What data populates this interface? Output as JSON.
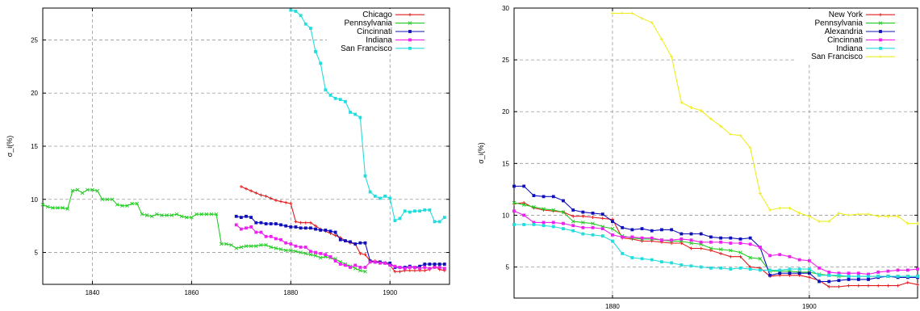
{
  "chart_data": [
    {
      "type": "line",
      "ylabel": "σ_i(%)",
      "xlim": [
        1830,
        1912
      ],
      "ylim": [
        2,
        28
      ],
      "xticks": [
        1840,
        1860,
        1880,
        1900
      ],
      "yticks": [
        5,
        10,
        15,
        20,
        25
      ],
      "grid": true,
      "legend_position": "top-right",
      "series": [
        {
          "name": "Chicago",
          "color": "#e41a1c",
          "marker": "plus",
          "x": [
            1870,
            1871,
            1872,
            1873,
            1874,
            1875,
            1876,
            1877,
            1878,
            1879,
            1880,
            1881,
            1882,
            1883,
            1884,
            1885,
            1886,
            1887,
            1888,
            1889,
            1890,
            1891,
            1892,
            1893,
            1894,
            1895,
            1896,
            1897,
            1898,
            1899,
            1900,
            1901,
            1902,
            1903,
            1904,
            1905,
            1906,
            1907,
            1908,
            1909,
            1910,
            1911
          ],
          "y": [
            11.2,
            11.0,
            10.8,
            10.6,
            10.4,
            10.3,
            10.1,
            9.9,
            9.8,
            9.7,
            9.6,
            7.9,
            7.8,
            7.8,
            7.8,
            7.5,
            7.2,
            7.0,
            6.8,
            6.6,
            6.4,
            6.1,
            5.9,
            5.8,
            4.9,
            4.8,
            4.2,
            4.2,
            4.1,
            4.0,
            3.8,
            3.2,
            3.2,
            3.3,
            3.3,
            3.3,
            3.3,
            3.3,
            3.4,
            3.7,
            3.4,
            3.3
          ]
        },
        {
          "name": "Pennsylvania",
          "color": "#22cc22",
          "marker": "cross",
          "x": [
            1830,
            1831,
            1832,
            1833,
            1834,
            1835,
            1836,
            1837,
            1838,
            1839,
            1840,
            1841,
            1842,
            1843,
            1844,
            1845,
            1846,
            1847,
            1848,
            1849,
            1850,
            1851,
            1852,
            1853,
            1854,
            1855,
            1856,
            1857,
            1858,
            1859,
            1860,
            1861,
            1862,
            1863,
            1864,
            1865,
            1866,
            1867,
            1868,
            1869,
            1870,
            1871,
            1872,
            1873,
            1874,
            1875,
            1876,
            1877,
            1878,
            1879,
            1880,
            1881,
            1882,
            1883,
            1884,
            1885,
            1886,
            1887,
            1888,
            1889,
            1890,
            1891,
            1892,
            1893,
            1894,
            1895
          ],
          "y": [
            9.5,
            9.3,
            9.2,
            9.2,
            9.2,
            9.1,
            10.8,
            10.9,
            10.6,
            10.9,
            10.9,
            10.8,
            10.0,
            10.0,
            10.0,
            9.5,
            9.4,
            9.4,
            9.6,
            9.6,
            8.6,
            8.5,
            8.4,
            8.6,
            8.5,
            8.5,
            8.5,
            8.6,
            8.4,
            8.3,
            8.3,
            8.6,
            8.6,
            8.6,
            8.6,
            8.6,
            5.8,
            5.8,
            5.7,
            5.4,
            5.5,
            5.6,
            5.6,
            5.6,
            5.7,
            5.7,
            5.5,
            5.4,
            5.3,
            5.2,
            5.2,
            5.1,
            5.0,
            4.9,
            4.8,
            4.7,
            4.5,
            4.6,
            4.5,
            4.4,
            4.1,
            3.9,
            3.7,
            3.5,
            3.3,
            3.2
          ]
        },
        {
          "name": "Cincinnati",
          "color": "#1010bb",
          "marker": "square",
          "x": [
            1869,
            1870,
            1871,
            1872,
            1873,
            1874,
            1875,
            1876,
            1877,
            1878,
            1879,
            1880,
            1881,
            1882,
            1883,
            1884,
            1885,
            1886,
            1887,
            1888,
            1889,
            1890,
            1891,
            1892,
            1893,
            1894,
            1895,
            1896,
            1897,
            1898,
            1899,
            1900,
            1901,
            1902,
            1903,
            1904,
            1905,
            1906,
            1907,
            1908,
            1909,
            1910,
            1911
          ],
          "y": [
            8.4,
            8.3,
            8.4,
            8.3,
            7.8,
            7.8,
            7.7,
            7.7,
            7.7,
            7.6,
            7.5,
            7.4,
            7.4,
            7.3,
            7.3,
            7.3,
            7.2,
            7.1,
            7.1,
            7.0,
            6.9,
            6.2,
            6.1,
            6.0,
            5.8,
            5.9,
            5.9,
            4.2,
            4.1,
            4.1,
            4.0,
            4.0,
            3.6,
            3.6,
            3.6,
            3.7,
            3.6,
            3.7,
            3.9,
            3.9,
            3.9,
            3.9,
            3.9
          ]
        },
        {
          "name": "Indiana",
          "color": "#ee22ee",
          "marker": "square",
          "x": [
            1869,
            1870,
            1871,
            1872,
            1873,
            1874,
            1875,
            1876,
            1877,
            1878,
            1879,
            1880,
            1881,
            1882,
            1883,
            1884,
            1885,
            1886,
            1887,
            1888,
            1889,
            1890,
            1891,
            1892,
            1893,
            1894,
            1895,
            1896,
            1897,
            1898,
            1899,
            1900,
            1901,
            1902,
            1903,
            1904,
            1905,
            1906,
            1907,
            1908,
            1909,
            1910,
            1911
          ],
          "y": [
            7.6,
            7.2,
            7.3,
            7.4,
            6.9,
            6.9,
            6.5,
            6.5,
            6.3,
            6.2,
            5.9,
            5.8,
            5.6,
            5.5,
            5.5,
            5.1,
            5.0,
            4.9,
            4.8,
            4.6,
            4.2,
            3.9,
            3.8,
            3.6,
            3.8,
            3.6,
            3.6,
            4.1,
            4.1,
            4.0,
            4.0,
            3.8,
            3.7,
            3.6,
            3.5,
            3.6,
            3.6,
            3.5,
            3.6,
            3.5,
            3.6,
            3.6,
            3.5
          ]
        },
        {
          "name": "San Francisco",
          "color": "#22dddd",
          "marker": "square",
          "x": [
            1880,
            1881,
            1882,
            1883,
            1884,
            1885,
            1886,
            1887,
            1888,
            1889,
            1890,
            1891,
            1892,
            1893,
            1894,
            1895,
            1896,
            1897,
            1898,
            1899,
            1900,
            1901,
            1902,
            1903,
            1904,
            1905,
            1906,
            1907,
            1908,
            1909,
            1910,
            1911
          ],
          "y": [
            27.8,
            27.7,
            27.3,
            26.5,
            26.1,
            23.9,
            22.8,
            20.3,
            19.8,
            19.5,
            19.4,
            19.2,
            18.2,
            18.0,
            17.7,
            12.2,
            10.7,
            10.3,
            10.1,
            10.3,
            10.1,
            8.0,
            8.2,
            8.9,
            8.8,
            8.9,
            8.9,
            9.0,
            9.0,
            7.9,
            7.9,
            8.3
          ]
        }
      ]
    },
    {
      "type": "line",
      "ylabel": "σ_i(%)",
      "xlim": [
        1870,
        1911
      ],
      "ylim": [
        2,
        30
      ],
      "xticks": [
        1880,
        1900
      ],
      "yticks": [
        5,
        10,
        15,
        20,
        25,
        30
      ],
      "grid": true,
      "legend_position": "top-right",
      "series": [
        {
          "name": "New York",
          "color": "#e41a1c",
          "marker": "plus",
          "x": [
            1870,
            1871,
            1872,
            1873,
            1874,
            1875,
            1876,
            1877,
            1878,
            1879,
            1880,
            1881,
            1882,
            1883,
            1884,
            1885,
            1886,
            1887,
            1888,
            1889,
            1890,
            1891,
            1892,
            1893,
            1894,
            1895,
            1896,
            1897,
            1898,
            1899,
            1900,
            1901,
            1902,
            1903,
            1904,
            1905,
            1906,
            1907,
            1908,
            1909,
            1910,
            1911
          ],
          "y": [
            11.1,
            11.2,
            10.7,
            10.5,
            10.4,
            10.3,
            9.9,
            9.9,
            9.8,
            9.7,
            9.6,
            7.8,
            7.7,
            7.5,
            7.5,
            7.4,
            7.3,
            7.3,
            6.8,
            6.8,
            6.6,
            6.3,
            6.0,
            6.0,
            5.0,
            4.9,
            4.1,
            4.2,
            4.2,
            4.2,
            4.0,
            3.7,
            3.1,
            3.1,
            3.2,
            3.2,
            3.2,
            3.2,
            3.2,
            3.2,
            3.5,
            3.3
          ]
        },
        {
          "name": "Pennsylvania",
          "color": "#22cc22",
          "marker": "cross",
          "x": [
            1870,
            1871,
            1872,
            1873,
            1874,
            1875,
            1876,
            1877,
            1878,
            1879,
            1880,
            1881,
            1882,
            1883,
            1884,
            1885,
            1886,
            1887,
            1888,
            1889,
            1890,
            1891,
            1892,
            1893,
            1894,
            1895,
            1896,
            1897,
            1898,
            1899,
            1900,
            1901,
            1902,
            1903,
            1904,
            1905,
            1906,
            1907,
            1908,
            1909,
            1910,
            1911
          ],
          "y": [
            11.2,
            11.0,
            10.8,
            10.6,
            10.5,
            10.3,
            9.4,
            9.3,
            9.2,
            8.9,
            8.7,
            8.0,
            7.8,
            7.7,
            7.7,
            7.6,
            7.5,
            7.5,
            7.3,
            7.2,
            6.8,
            6.7,
            6.6,
            6.4,
            5.9,
            5.8,
            4.6,
            4.6,
            4.6,
            4.5,
            4.5,
            4.3,
            4.2,
            4.1,
            4.1,
            4.1,
            4.1,
            4.1,
            4.1,
            4.1,
            4.1,
            4.1
          ]
        },
        {
          "name": "Alexandria",
          "color": "#1010bb",
          "marker": "square",
          "x": [
            1870,
            1871,
            1872,
            1873,
            1874,
            1875,
            1876,
            1877,
            1878,
            1879,
            1880,
            1881,
            1882,
            1883,
            1884,
            1885,
            1886,
            1887,
            1888,
            1889,
            1890,
            1891,
            1892,
            1893,
            1894,
            1895,
            1896,
            1897,
            1898,
            1899,
            1900,
            1901,
            1902,
            1903,
            1904,
            1905,
            1906,
            1907,
            1908,
            1909,
            1910,
            1911
          ],
          "y": [
            12.8,
            12.8,
            11.9,
            11.8,
            11.8,
            11.4,
            10.5,
            10.3,
            10.2,
            10.1,
            9.4,
            8.8,
            8.6,
            8.7,
            8.5,
            8.6,
            8.6,
            8.2,
            8.2,
            8.2,
            7.9,
            7.8,
            7.8,
            7.7,
            7.8,
            6.9,
            4.2,
            4.4,
            4.4,
            4.4,
            4.4,
            3.6,
            3.6,
            3.7,
            3.8,
            3.8,
            3.8,
            4.0,
            4.1,
            4.0,
            4.0,
            4.0
          ]
        },
        {
          "name": "Cincinnati",
          "color": "#ee22ee",
          "marker": "square",
          "x": [
            1870,
            1871,
            1872,
            1873,
            1874,
            1875,
            1876,
            1877,
            1878,
            1879,
            1880,
            1881,
            1882,
            1883,
            1884,
            1885,
            1886,
            1887,
            1888,
            1889,
            1890,
            1891,
            1892,
            1893,
            1894,
            1895,
            1896,
            1897,
            1898,
            1899,
            1900,
            1901,
            1902,
            1903,
            1904,
            1905,
            1906,
            1907,
            1908,
            1909,
            1910,
            1911
          ],
          "y": [
            10.4,
            10.0,
            9.3,
            9.3,
            9.3,
            9.2,
            9.0,
            8.8,
            8.8,
            8.7,
            8.1,
            7.9,
            7.9,
            7.8,
            7.8,
            7.6,
            7.6,
            7.7,
            7.6,
            7.4,
            7.4,
            7.4,
            7.3,
            7.3,
            7.2,
            6.9,
            6.1,
            6.2,
            6.0,
            5.7,
            5.6,
            4.9,
            4.5,
            4.4,
            4.4,
            4.4,
            4.3,
            4.5,
            4.6,
            4.7,
            4.7,
            4.8
          ]
        },
        {
          "name": "Indiana",
          "color": "#22dddd",
          "marker": "square",
          "x": [
            1870,
            1871,
            1872,
            1873,
            1874,
            1875,
            1876,
            1877,
            1878,
            1879,
            1880,
            1881,
            1882,
            1883,
            1884,
            1885,
            1886,
            1887,
            1888,
            1889,
            1890,
            1891,
            1892,
            1893,
            1894,
            1895,
            1896,
            1897,
            1898,
            1899,
            1900,
            1901,
            1902,
            1903,
            1904,
            1905,
            1906,
            1907,
            1908,
            1909,
            1910,
            1911
          ],
          "y": [
            9.1,
            9.1,
            9.1,
            9.0,
            8.9,
            8.7,
            8.5,
            8.2,
            8.1,
            8.0,
            7.5,
            6.3,
            5.9,
            5.8,
            5.7,
            5.5,
            5.4,
            5.2,
            5.1,
            5.0,
            4.9,
            4.9,
            4.8,
            4.9,
            4.8,
            4.7,
            4.7,
            4.7,
            4.8,
            4.8,
            4.8,
            4.2,
            4.2,
            4.2,
            4.1,
            4.1,
            4.1,
            4.1,
            4.1,
            4.1,
            4.1,
            4.1
          ]
        },
        {
          "name": "San Francisco",
          "color": "#eeee22",
          "marker": "plus",
          "x": [
            1880,
            1881,
            1882,
            1883,
            1884,
            1885,
            1886,
            1887,
            1888,
            1889,
            1890,
            1891,
            1892,
            1893,
            1894,
            1895,
            1896,
            1897,
            1898,
            1899,
            1900,
            1901,
            1902,
            1903,
            1904,
            1905,
            1906,
            1907,
            1908,
            1909,
            1910,
            1911
          ],
          "y": [
            29.5,
            29.5,
            29.5,
            29.0,
            28.6,
            27.0,
            25.3,
            20.9,
            20.4,
            20.1,
            19.3,
            18.6,
            17.8,
            17.7,
            16.5,
            12.1,
            10.5,
            10.7,
            10.7,
            10.2,
            9.9,
            9.4,
            9.4,
            10.2,
            10.0,
            10.1,
            10.1,
            9.9,
            9.9,
            9.9,
            9.2,
            9.2
          ]
        }
      ]
    }
  ]
}
